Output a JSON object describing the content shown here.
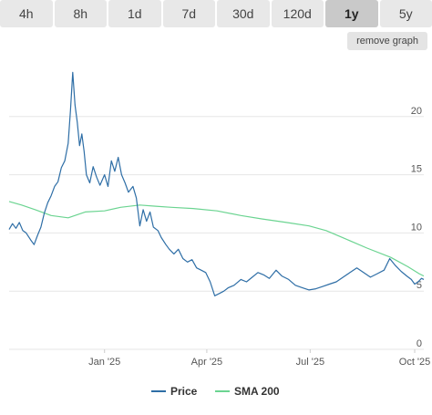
{
  "range_tabs": [
    {
      "label": "4h",
      "active": false
    },
    {
      "label": "8h",
      "active": false
    },
    {
      "label": "1d",
      "active": false
    },
    {
      "label": "7d",
      "active": false
    },
    {
      "label": "30d",
      "active": false
    },
    {
      "label": "120d",
      "active": false
    },
    {
      "label": "1y",
      "active": true
    },
    {
      "label": "5y",
      "active": false
    }
  ],
  "remove_graph_label": "remove graph",
  "colors": {
    "price": "#2e6ea6",
    "sma": "#6bd491",
    "grid": "#e6e6e6"
  },
  "chart_data": {
    "type": "line",
    "x_range": [
      "2024-10-09",
      "2025-10-09"
    ],
    "ylim": [
      0,
      25
    ],
    "y_ticks": [
      0,
      5,
      10,
      15,
      20
    ],
    "x_tick_labels": [
      {
        "date": "2025-01-01",
        "label": "Jan '25"
      },
      {
        "date": "2025-04-01",
        "label": "Apr '25"
      },
      {
        "date": "2025-07-01",
        "label": "Jul '25"
      },
      {
        "date": "2025-10-01",
        "label": "Oct '25"
      }
    ],
    "legend": [
      "Price",
      "SMA 200"
    ],
    "series": [
      {
        "name": "Price",
        "points": [
          [
            "2024-10-09",
            10.3
          ],
          [
            "2024-10-12",
            10.8
          ],
          [
            "2024-10-15",
            10.4
          ],
          [
            "2024-10-18",
            10.9
          ],
          [
            "2024-10-21",
            10.2
          ],
          [
            "2024-10-24",
            10.0
          ],
          [
            "2024-10-28",
            9.4
          ],
          [
            "2024-10-31",
            9.0
          ],
          [
            "2024-11-03",
            9.8
          ],
          [
            "2024-11-06",
            10.5
          ],
          [
            "2024-11-09",
            11.7
          ],
          [
            "2024-11-12",
            12.6
          ],
          [
            "2024-11-15",
            13.2
          ],
          [
            "2024-11-18",
            14.0
          ],
          [
            "2024-11-21",
            14.4
          ],
          [
            "2024-11-24",
            15.6
          ],
          [
            "2024-11-27",
            16.2
          ],
          [
            "2024-11-30",
            17.7
          ],
          [
            "2024-12-02",
            20.5
          ],
          [
            "2024-12-04",
            23.8
          ],
          [
            "2024-12-06",
            21.0
          ],
          [
            "2024-12-08",
            19.5
          ],
          [
            "2024-12-10",
            17.5
          ],
          [
            "2024-12-12",
            18.5
          ],
          [
            "2024-12-14",
            17.0
          ],
          [
            "2024-12-16",
            15.0
          ],
          [
            "2024-12-19",
            14.3
          ],
          [
            "2024-12-22",
            15.7
          ],
          [
            "2024-12-25",
            14.8
          ],
          [
            "2024-12-28",
            14.1
          ],
          [
            "2025-01-01",
            15.0
          ],
          [
            "2025-01-04",
            14.0
          ],
          [
            "2025-01-07",
            16.2
          ],
          [
            "2025-01-10",
            15.3
          ],
          [
            "2025-01-13",
            16.5
          ],
          [
            "2025-01-16",
            15.0
          ],
          [
            "2025-01-19",
            14.3
          ],
          [
            "2025-01-22",
            13.5
          ],
          [
            "2025-01-26",
            14.0
          ],
          [
            "2025-01-29",
            13.0
          ],
          [
            "2025-02-01",
            10.6
          ],
          [
            "2025-02-04",
            12.0
          ],
          [
            "2025-02-07",
            11.0
          ],
          [
            "2025-02-10",
            11.8
          ],
          [
            "2025-02-13",
            10.5
          ],
          [
            "2025-02-17",
            10.2
          ],
          [
            "2025-02-20",
            9.6
          ],
          [
            "2025-02-24",
            9.0
          ],
          [
            "2025-02-27",
            8.6
          ],
          [
            "2025-03-03",
            8.2
          ],
          [
            "2025-03-07",
            8.6
          ],
          [
            "2025-03-11",
            7.8
          ],
          [
            "2025-03-15",
            7.5
          ],
          [
            "2025-03-19",
            7.7
          ],
          [
            "2025-03-23",
            7.0
          ],
          [
            "2025-03-27",
            6.8
          ],
          [
            "2025-03-31",
            6.6
          ],
          [
            "2025-04-04",
            5.8
          ],
          [
            "2025-04-08",
            4.6
          ],
          [
            "2025-04-12",
            4.8
          ],
          [
            "2025-04-16",
            5.0
          ],
          [
            "2025-04-20",
            5.3
          ],
          [
            "2025-04-25",
            5.5
          ],
          [
            "2025-05-01",
            6.0
          ],
          [
            "2025-05-06",
            5.8
          ],
          [
            "2025-05-11",
            6.2
          ],
          [
            "2025-05-16",
            6.6
          ],
          [
            "2025-05-21",
            6.4
          ],
          [
            "2025-05-26",
            6.1
          ],
          [
            "2025-06-01",
            6.8
          ],
          [
            "2025-06-06",
            6.3
          ],
          [
            "2025-06-12",
            6.0
          ],
          [
            "2025-06-18",
            5.5
          ],
          [
            "2025-06-24",
            5.3
          ],
          [
            "2025-06-30",
            5.1
          ],
          [
            "2025-07-06",
            5.2
          ],
          [
            "2025-07-12",
            5.4
          ],
          [
            "2025-07-18",
            5.6
          ],
          [
            "2025-07-24",
            5.8
          ],
          [
            "2025-07-30",
            6.2
          ],
          [
            "2025-08-05",
            6.6
          ],
          [
            "2025-08-11",
            7.0
          ],
          [
            "2025-08-17",
            6.6
          ],
          [
            "2025-08-23",
            6.2
          ],
          [
            "2025-08-29",
            6.5
          ],
          [
            "2025-09-04",
            6.8
          ],
          [
            "2025-09-09",
            7.8
          ],
          [
            "2025-09-14",
            7.2
          ],
          [
            "2025-09-19",
            6.7
          ],
          [
            "2025-09-24",
            6.3
          ],
          [
            "2025-09-28",
            6.0
          ],
          [
            "2025-10-01",
            5.6
          ],
          [
            "2025-10-04",
            5.8
          ],
          [
            "2025-10-07",
            6.1
          ],
          [
            "2025-10-09",
            6.0
          ]
        ]
      },
      {
        "name": "SMA 200",
        "points": [
          [
            "2024-10-09",
            12.7
          ],
          [
            "2024-10-20",
            12.4
          ],
          [
            "2024-11-01",
            12.0
          ],
          [
            "2024-11-15",
            11.5
          ],
          [
            "2024-11-30",
            11.3
          ],
          [
            "2024-12-15",
            11.8
          ],
          [
            "2025-01-01",
            11.9
          ],
          [
            "2025-01-15",
            12.2
          ],
          [
            "2025-02-01",
            12.4
          ],
          [
            "2025-02-15",
            12.3
          ],
          [
            "2025-03-01",
            12.2
          ],
          [
            "2025-03-20",
            12.1
          ],
          [
            "2025-04-10",
            11.9
          ],
          [
            "2025-05-01",
            11.5
          ],
          [
            "2025-05-20",
            11.2
          ],
          [
            "2025-06-10",
            10.9
          ],
          [
            "2025-06-30",
            10.6
          ],
          [
            "2025-07-15",
            10.2
          ],
          [
            "2025-08-01",
            9.5
          ],
          [
            "2025-08-20",
            8.7
          ],
          [
            "2025-09-10",
            7.9
          ],
          [
            "2025-09-25",
            7.1
          ],
          [
            "2025-10-05",
            6.5
          ],
          [
            "2025-10-09",
            6.3
          ]
        ]
      }
    ]
  }
}
